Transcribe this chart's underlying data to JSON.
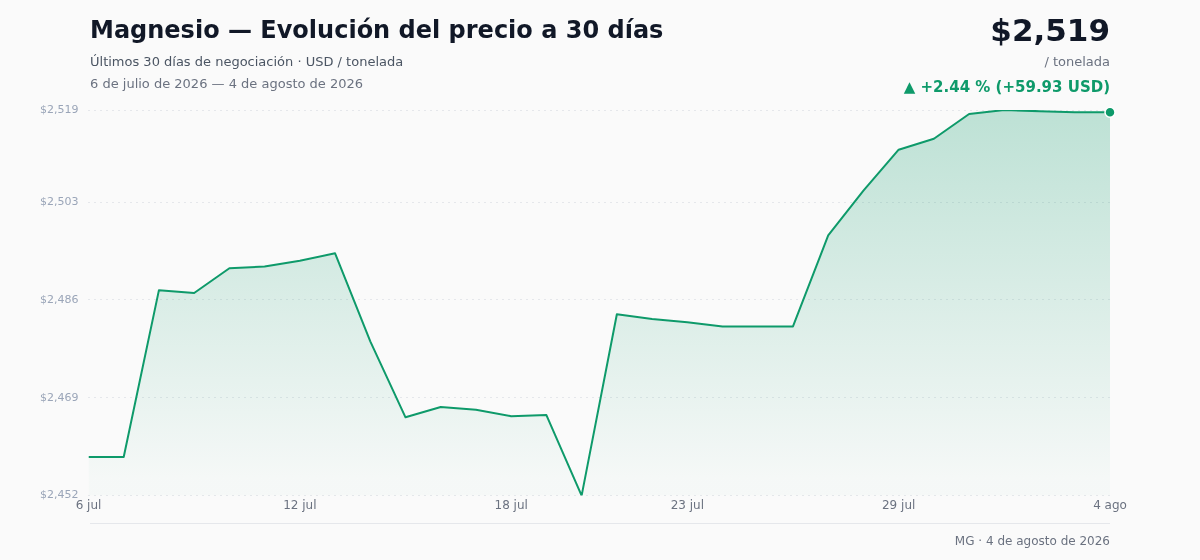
{
  "chart_data": {
    "type": "area",
    "title": "Magnesio — Evolución del precio a 30 días",
    "subtitle": "Últimos 30 días de negociación · USD / tonelada",
    "annotations": [
      "6 de julio de 2026 — 4 de agosto de 2026",
      "$2,519",
      "/ tonelada",
      "▲ +2.44 % (+59.93 USD)",
      "MG · 4 de agosto de 2026"
    ],
    "x": [
      "2026-07-06",
      "2026-07-07",
      "2026-07-08",
      "2026-07-09",
      "2026-07-10",
      "2026-07-11",
      "2026-07-12",
      "2026-07-13",
      "2026-07-14",
      "2026-07-15",
      "2026-07-16",
      "2026-07-17",
      "2026-07-18",
      "2026-07-19",
      "2026-07-20",
      "2026-07-21",
      "2026-07-22",
      "2026-07-23",
      "2026-07-24",
      "2026-07-25",
      "2026-07-26",
      "2026-07-27",
      "2026-07-28",
      "2026-07-29",
      "2026-07-30",
      "2026-07-31",
      "2026-08-01",
      "2026-08-02",
      "2026-08-03",
      "2026-08-04"
    ],
    "series": [
      {
        "color": "#0e9a6a",
        "marker": "none",
        "values": [
          2458.7,
          2458.7,
          2487.7,
          2487.2,
          2491.5,
          2491.8,
          2492.8,
          2494.1,
          2478.8,
          2465.6,
          2467.4,
          2466.9,
          2465.8,
          2466.0,
          2452.0,
          2483.5,
          2482.7,
          2482.1,
          2481.4,
          2481.4,
          2481.4,
          2497.2,
          2505.0,
          2512.1,
          2514.0,
          2518.3,
          2519.0,
          2518.8,
          2518.6,
          2518.6
        ]
      },
      {
        "type": "scatter",
        "marker": "circle",
        "color": "#0e9a6a",
        "x": [
          "2026-08-04"
        ],
        "values": [
          2518.6
        ]
      }
    ],
    "xlim": [
      "2026-07-06",
      "2026-08-04"
    ],
    "xticks": [
      {
        "value": "2026-07-06",
        "label": "6 jul"
      },
      {
        "value": "2026-07-12",
        "label": "12 jul"
      },
      {
        "value": "2026-07-18",
        "label": "18 jul"
      },
      {
        "value": "2026-07-23",
        "label": "23 jul"
      },
      {
        "value": "2026-07-29",
        "label": "29 jul"
      },
      {
        "value": "2026-08-04",
        "label": "4 ago"
      }
    ],
    "ylim": [
      2452,
      2519
    ],
    "yticks": [
      {
        "value": 2452,
        "label": "$2,452"
      },
      {
        "value": 2469,
        "label": "$2,469"
      },
      {
        "value": 2486,
        "label": "$2,486"
      },
      {
        "value": 2503,
        "label": "$2,503"
      },
      {
        "value": 2519,
        "label": "$2,519"
      }
    ],
    "grid": "y",
    "line_style": "solid",
    "legend": false
  }
}
